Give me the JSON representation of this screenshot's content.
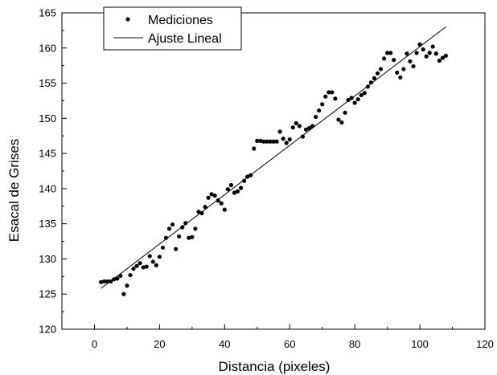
{
  "chart_data": {
    "type": "scatter",
    "xlabel": "Distancia (pixeles)",
    "ylabel": "Esacal de Grises",
    "xlim": [
      -10,
      120
    ],
    "ylim": [
      120,
      165
    ],
    "x_ticks": [
      0,
      20,
      40,
      60,
      80,
      100,
      120
    ],
    "y_ticks": [
      120,
      125,
      130,
      135,
      140,
      145,
      150,
      155,
      160,
      165
    ],
    "grid": false,
    "legend_position": "top-left",
    "series": [
      {
        "name": "Mediciones",
        "kind": "scatter",
        "points": [
          [
            2,
            126.7
          ],
          [
            3,
            126.8
          ],
          [
            4,
            126.8
          ],
          [
            5,
            126.8
          ],
          [
            6,
            127.1
          ],
          [
            7,
            127.2
          ],
          [
            8,
            127.6
          ],
          [
            9,
            125.0
          ],
          [
            10,
            126.2
          ],
          [
            11,
            127.7
          ],
          [
            12,
            128.6
          ],
          [
            13,
            129.0
          ],
          [
            14,
            129.4
          ],
          [
            15,
            128.8
          ],
          [
            16,
            128.9
          ],
          [
            17,
            130.4
          ],
          [
            18,
            129.6
          ],
          [
            19,
            129.1
          ],
          [
            20,
            130.3
          ],
          [
            21,
            131.6
          ],
          [
            22,
            133.0
          ],
          [
            23,
            134.3
          ],
          [
            24,
            134.9
          ],
          [
            25,
            131.4
          ],
          [
            26,
            133.2
          ],
          [
            27,
            134.5
          ],
          [
            28,
            135.1
          ],
          [
            29,
            133.0
          ],
          [
            30,
            133.1
          ],
          [
            31,
            134.3
          ],
          [
            32,
            136.7
          ],
          [
            33,
            136.5
          ],
          [
            34,
            137.4
          ],
          [
            35,
            138.7
          ],
          [
            36,
            139.2
          ],
          [
            37,
            139.0
          ],
          [
            38,
            138.3
          ],
          [
            39,
            137.9
          ],
          [
            40,
            137.0
          ],
          [
            41,
            139.9
          ],
          [
            42,
            140.5
          ],
          [
            43,
            139.4
          ],
          [
            44,
            139.6
          ],
          [
            45,
            140.1
          ],
          [
            46,
            141.1
          ],
          [
            47,
            141.7
          ],
          [
            48,
            141.9
          ],
          [
            49,
            145.7
          ],
          [
            50,
            146.8
          ],
          [
            51,
            146.8
          ],
          [
            52,
            146.7
          ],
          [
            53,
            146.7
          ],
          [
            54,
            146.7
          ],
          [
            55,
            146.7
          ],
          [
            56,
            146.7
          ],
          [
            57,
            148.1
          ],
          [
            58,
            147.1
          ],
          [
            59,
            146.5
          ],
          [
            60,
            147.0
          ],
          [
            61,
            148.7
          ],
          [
            62,
            149.3
          ],
          [
            63,
            148.9
          ],
          [
            64,
            147.4
          ],
          [
            65,
            148.4
          ],
          [
            66,
            148.6
          ],
          [
            67,
            148.9
          ],
          [
            68,
            150.2
          ],
          [
            69,
            151.1
          ],
          [
            70,
            152.0
          ],
          [
            71,
            153.1
          ],
          [
            72,
            153.7
          ],
          [
            73,
            153.7
          ],
          [
            74,
            152.8
          ],
          [
            75,
            149.8
          ],
          [
            76,
            149.4
          ],
          [
            77,
            150.8
          ],
          [
            78,
            152.6
          ],
          [
            79,
            152.9
          ],
          [
            80,
            152.2
          ],
          [
            81,
            152.7
          ],
          [
            82,
            153.3
          ],
          [
            83,
            153.6
          ],
          [
            84,
            154.5
          ],
          [
            85,
            155.1
          ],
          [
            86,
            155.7
          ],
          [
            87,
            156.4
          ],
          [
            88,
            157.0
          ],
          [
            89,
            158.5
          ],
          [
            90,
            159.3
          ],
          [
            91,
            159.3
          ],
          [
            92,
            158.3
          ],
          [
            93,
            156.5
          ],
          [
            94,
            155.8
          ],
          [
            95,
            157.0
          ],
          [
            96,
            159.2
          ],
          [
            97,
            158.1
          ],
          [
            98,
            157.4
          ],
          [
            99,
            159.3
          ],
          [
            100,
            160.5
          ],
          [
            101,
            159.8
          ],
          [
            102,
            158.8
          ],
          [
            103,
            159.3
          ],
          [
            104,
            160.2
          ],
          [
            105,
            159.2
          ],
          [
            106,
            158.2
          ],
          [
            107,
            158.6
          ],
          [
            108,
            158.9
          ]
        ]
      },
      {
        "name": "Ajuste Lineal",
        "kind": "line",
        "points": [
          [
            2,
            125.8
          ],
          [
            108,
            163.0
          ]
        ]
      }
    ]
  }
}
